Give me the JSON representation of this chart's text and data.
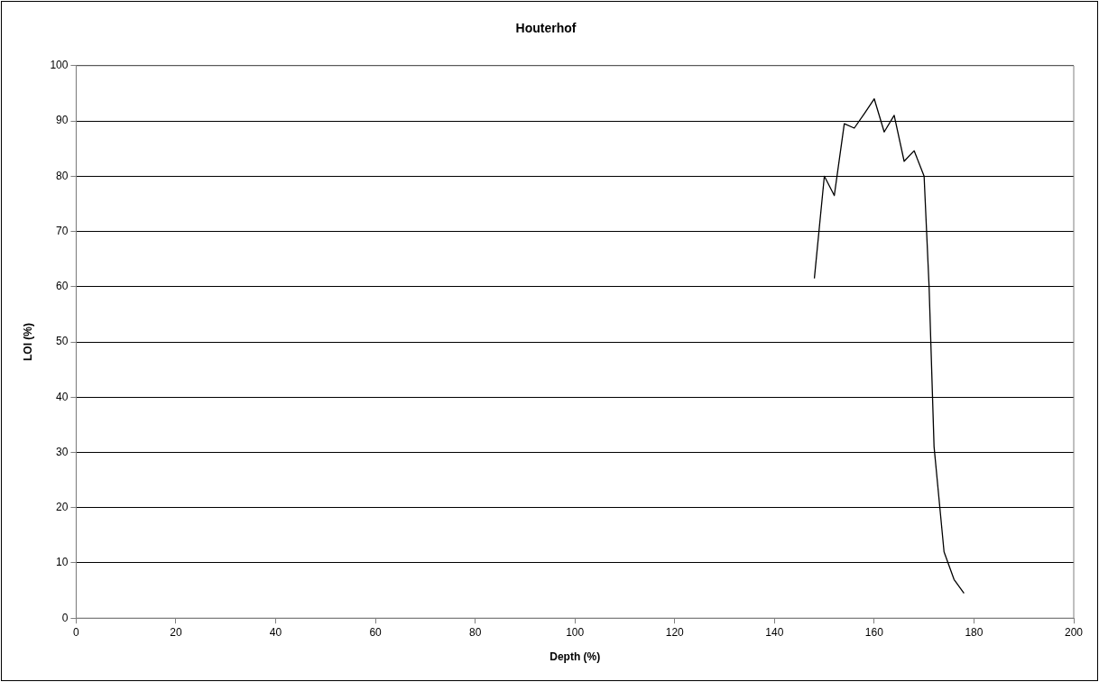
{
  "chart_data": {
    "type": "line",
    "title": "Houterhof",
    "xlabel": "Depth (%)",
    "ylabel": "LOI (%)",
    "x": [
      148,
      150,
      152,
      154,
      156,
      158,
      160,
      162,
      164,
      166,
      168,
      170,
      171,
      172,
      174,
      176,
      178
    ],
    "series": [
      {
        "color": "#000000",
        "values": [
          61.5,
          80,
          76.5,
          89.5,
          88.7,
          91.3,
          94,
          88,
          91,
          82.7,
          84.6,
          80,
          60,
          31,
          12,
          7,
          4.5
        ]
      }
    ],
    "xlim": [
      0,
      200
    ],
    "xticks": [
      0,
      20,
      40,
      60,
      80,
      100,
      120,
      140,
      160,
      180,
      200
    ],
    "ylim": [
      0,
      100
    ],
    "yticks": [
      0,
      10,
      20,
      30,
      40,
      50,
      60,
      70,
      80,
      90,
      100
    ],
    "grid": "y",
    "legend": false,
    "marker": "none",
    "line_style": "solid"
  }
}
